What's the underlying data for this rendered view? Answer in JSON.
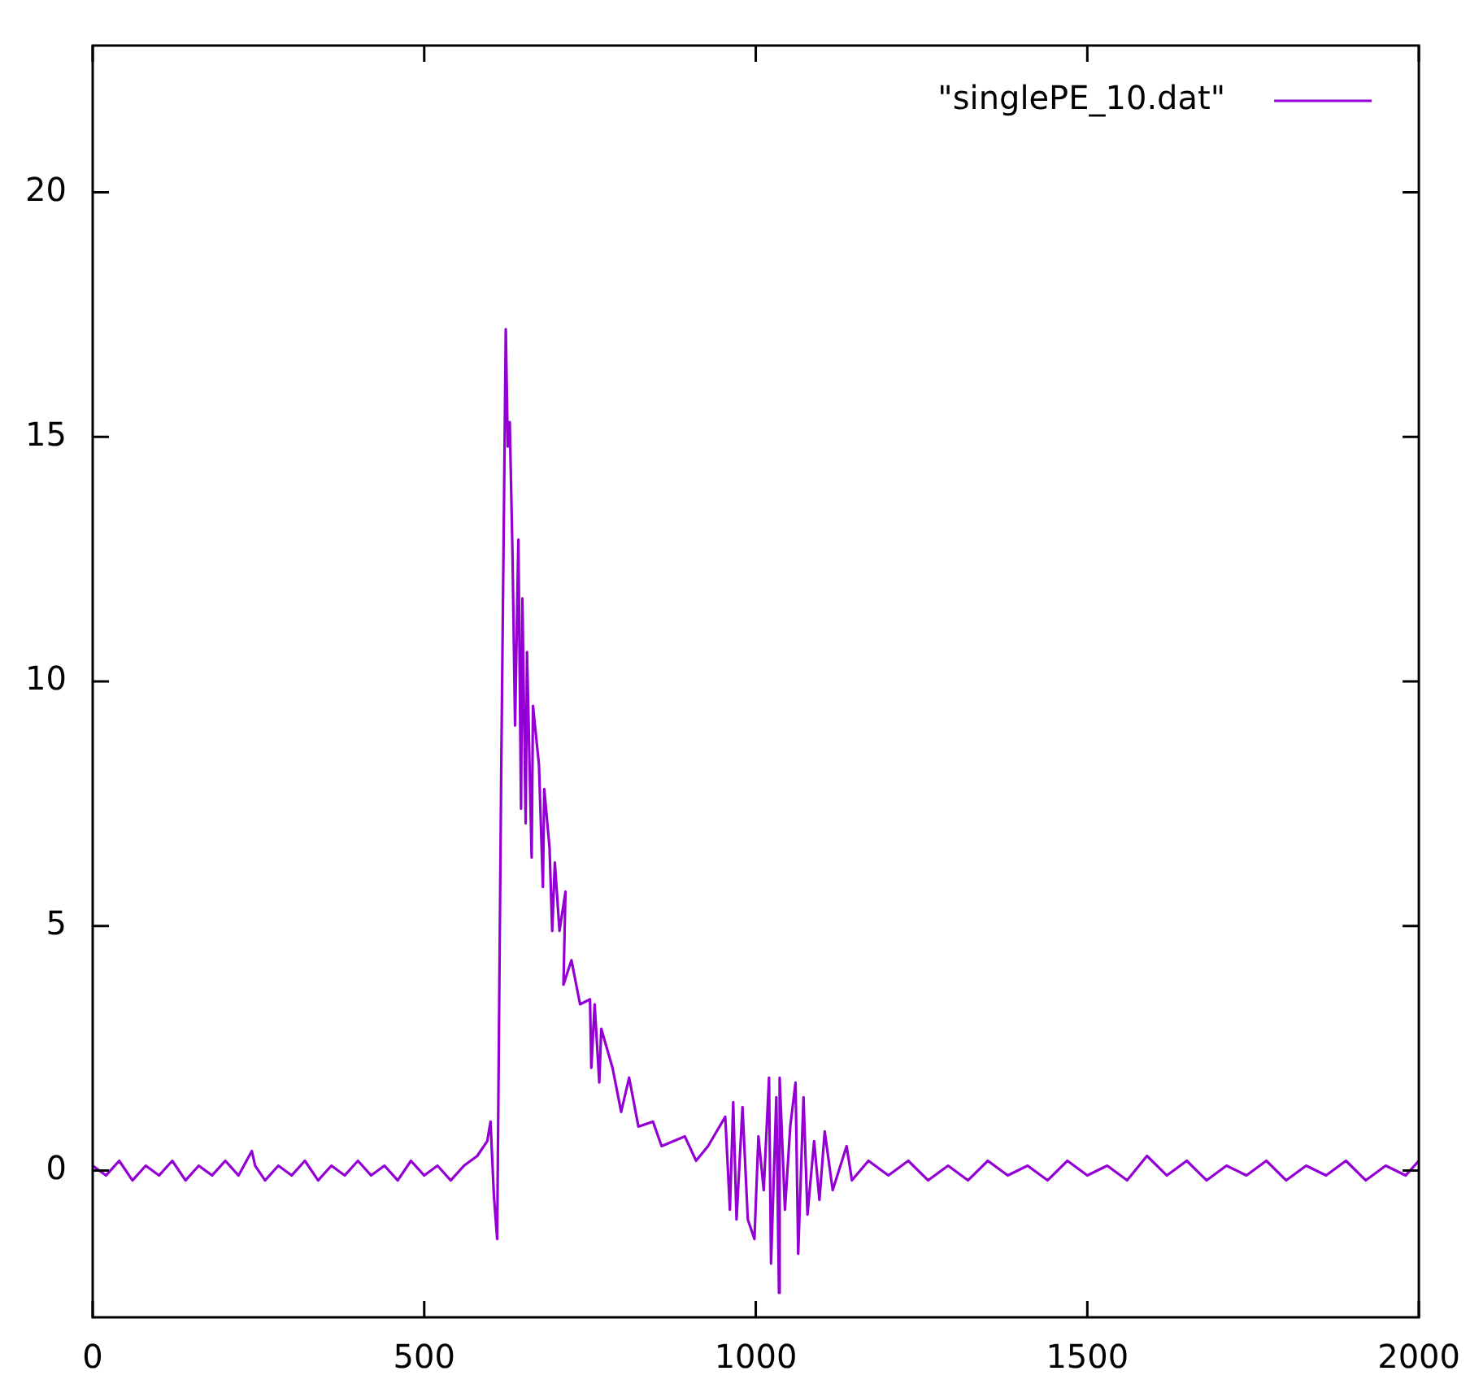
{
  "chart_data": {
    "type": "line",
    "legend": "top right",
    "marker": "none",
    "line_style": "solid",
    "grid": false,
    "xlim": [
      0,
      2000
    ],
    "xticks": [
      0,
      500,
      1000,
      1500,
      2000
    ],
    "ylim": [
      -3,
      23
    ],
    "yticks": [
      0,
      5,
      10,
      15,
      20
    ],
    "series": [
      {
        "name": "\"singlePE_10.dat\"",
        "color": "#9400d3",
        "x": [
          0,
          20,
          40,
          60,
          80,
          100,
          120,
          140,
          160,
          180,
          200,
          220,
          240,
          245,
          260,
          280,
          300,
          320,
          340,
          360,
          380,
          400,
          420,
          440,
          460,
          480,
          500,
          520,
          540,
          560,
          580,
          595,
          600,
          605,
          610,
          616,
          623,
          626,
          629,
          633,
          637,
          642,
          646,
          648,
          653,
          655,
          662,
          664,
          673,
          679,
          681,
          689,
          693,
          697,
          704,
          713,
          710,
          722,
          735,
          750,
          752,
          757,
          764,
          767,
          784,
          797,
          809,
          823,
          845,
          858,
          893,
          910,
          928,
          954,
          961,
          966,
          971,
          980,
          988,
          998,
          1004,
          1012,
          1020,
          1023,
          1031,
          1035,
          1036,
          1044,
          1052,
          1060,
          1064,
          1072,
          1078,
          1088,
          1096,
          1104,
          1116,
          1137,
          1145,
          1170,
          1200,
          1230,
          1260,
          1290,
          1320,
          1350,
          1380,
          1410,
          1440,
          1470,
          1500,
          1530,
          1560,
          1590,
          1620,
          1650,
          1680,
          1710,
          1740,
          1770,
          1800,
          1830,
          1860,
          1890,
          1920,
          1950,
          1980,
          2000
        ],
        "values": [
          0.1,
          -0.1,
          0.2,
          -0.2,
          0.1,
          -0.1,
          0.2,
          -0.2,
          0.1,
          -0.1,
          0.2,
          -0.1,
          0.4,
          0.1,
          -0.2,
          0.1,
          -0.1,
          0.2,
          -0.2,
          0.1,
          -0.1,
          0.2,
          -0.1,
          0.1,
          -0.2,
          0.2,
          -0.1,
          0.1,
          -0.2,
          0.1,
          0.3,
          0.6,
          1.0,
          -0.5,
          -1.4,
          8.0,
          17.2,
          14.8,
          15.3,
          12.7,
          9.1,
          12.9,
          7.4,
          11.7,
          7.1,
          10.6,
          6.4,
          9.5,
          8.3,
          5.8,
          7.8,
          6.6,
          4.9,
          6.3,
          4.9,
          5.7,
          3.8,
          4.3,
          3.4,
          3.5,
          2.1,
          3.4,
          1.8,
          2.9,
          2.1,
          1.2,
          1.9,
          0.9,
          1.0,
          0.5,
          0.7,
          0.2,
          0.5,
          1.1,
          -0.8,
          1.4,
          -1.0,
          1.3,
          -1.0,
          -1.4,
          0.7,
          -0.4,
          1.9,
          -1.9,
          1.5,
          -2.5,
          1.9,
          -0.8,
          0.9,
          1.8,
          -1.7,
          1.5,
          -0.9,
          0.6,
          -0.6,
          0.8,
          -0.4,
          0.5,
          -0.2,
          0.2,
          -0.1,
          0.2,
          -0.2,
          0.1,
          -0.2,
          0.2,
          -0.1,
          0.1,
          -0.2,
          0.2,
          -0.1,
          0.1,
          -0.2,
          0.3,
          -0.1,
          0.2,
          -0.2,
          0.1,
          -0.1,
          0.2,
          -0.2,
          0.1,
          -0.1,
          0.2,
          -0.2,
          0.1,
          -0.1,
          0.2
        ]
      }
    ]
  }
}
